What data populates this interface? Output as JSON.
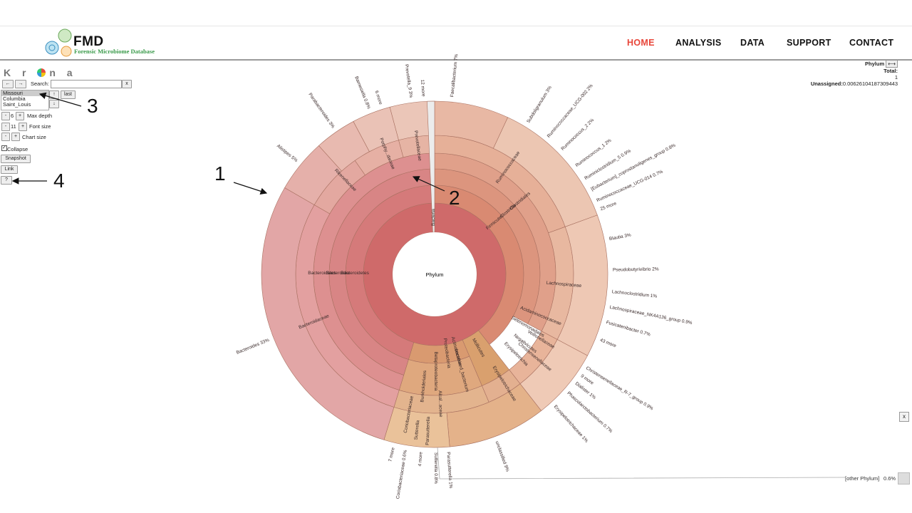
{
  "nav": {
    "logo_title": "FMD",
    "logo_subtitle": "Forensic Microbiome Database",
    "items": [
      "HOME",
      "ANALYSIS",
      "DATA",
      "SUPPORT",
      "CONTACT"
    ],
    "active": "HOME",
    "active_color": "#e8463a"
  },
  "krona": {
    "logo": "Kr na",
    "back": "←",
    "forward": "→",
    "search_label": "Search:",
    "search_clear": "x",
    "datasets": [
      "Missouri",
      "Columbia",
      "Saint_Louis"
    ],
    "selected_dataset": "Missouri",
    "up": "↑",
    "down": "↓",
    "last": "last",
    "max_depth": {
      "minus": "-",
      "value": "6",
      "plus": "+",
      "label": "Max depth"
    },
    "font_size": {
      "minus": "-",
      "value": "11",
      "plus": "+",
      "label": "Font size"
    },
    "chart_size": {
      "minus": "-",
      "plus": "+",
      "label": "Chart size"
    },
    "collapse_label": "Collapse",
    "collapse_checked": true,
    "snapshot": "Snapshot",
    "link": "Link",
    "help": "?"
  },
  "info": {
    "rank": "Phylum",
    "rank_button": "⟷",
    "total_label": "Total:",
    "total_value": "1",
    "unassigned_label": "Unassigned:",
    "unassigned_value": "0.00626104187309443",
    "other_label": "[other Phylum]",
    "other_pct": "0.6%",
    "close": "x"
  },
  "annotations": [
    "1",
    "2",
    "3",
    "4"
  ],
  "chart_data": {
    "type": "sunburst",
    "center_label": "Phylum",
    "ring_labels": [
      "Bacteria",
      "Bacteroidetes",
      "Bacteroidia",
      "Bacteroidales",
      "Firmicutes",
      "Clostridia",
      "Clostridiales",
      "Mollicutes",
      "Actinobacteria",
      "Proteobacteria",
      "Betaproteobacteria",
      "Burkholderiales",
      "Selenomonadales",
      "Negativicutes",
      "Erysipelotrichia",
      "Prevotellaceae",
      "Porphy...daceae",
      "Rikenellaceae",
      "Bacteroidaceae",
      "Ruminococcaceae",
      "Lachnospiraceae",
      "Christensenellaceae",
      "Acidaminococcaceae",
      "Veillonellaceae",
      "Erysipelotrichaceae",
      "uncultured_bacterium",
      "Coriobacteriaceae",
      "Alcal...aceae",
      "Sutterella",
      "Parasutterella"
    ],
    "leaves": [
      {
        "name": "Bacteroides",
        "pct": "33%"
      },
      {
        "name": "Alistipes",
        "pct": "5%"
      },
      {
        "name": "Parabacteroides",
        "pct": "3%"
      },
      {
        "name": "Barnesiella",
        "pct": "0.8%"
      },
      {
        "name": "6 more",
        "pct": ""
      },
      {
        "name": "Prevotella_9",
        "pct": "3%"
      },
      {
        "name": "12 more",
        "pct": ""
      },
      {
        "name": "Faecalibacterium",
        "pct": "7%"
      },
      {
        "name": "Subdoligranulum",
        "pct": "3%"
      },
      {
        "name": "Ruminococcaceae_UCG-002",
        "pct": "2%"
      },
      {
        "name": "Ruminococcus_2",
        "pct": "2%"
      },
      {
        "name": "Ruminococcus_1",
        "pct": "2%"
      },
      {
        "name": "Ruminiclostridium_5",
        "pct": "0.9%"
      },
      {
        "name": "[Eubacterium]_coprostanoligenes_group",
        "pct": "0.8%"
      },
      {
        "name": "Ruminococcaceae_UCG-014",
        "pct": "0.7%"
      },
      {
        "name": "25 more",
        "pct": ""
      },
      {
        "name": "Blautia",
        "pct": "3%"
      },
      {
        "name": "Pseudobutyrivibrio",
        "pct": "2%"
      },
      {
        "name": "Lachnoclostridium",
        "pct": "1%"
      },
      {
        "name": "Lachnospiraceae_NK4A136_group",
        "pct": "0.9%"
      },
      {
        "name": "Fusicatenibacter",
        "pct": "0.7%"
      },
      {
        "name": "43 more",
        "pct": ""
      },
      {
        "name": "Christensenellaceae_R-7_group",
        "pct": "0.9%"
      },
      {
        "name": "9 more",
        "pct": ""
      },
      {
        "name": "Dialister",
        "pct": "1%"
      },
      {
        "name": "Phascolarctobacterium",
        "pct": "0.7%"
      },
      {
        "name": "Erysipelotrichaceae",
        "pct": "1%"
      },
      {
        "name": "unclassified",
        "pct": "9%"
      },
      {
        "name": "Parasutterella",
        "pct": "1%"
      },
      {
        "name": "Sutterella",
        "pct": "0.8%"
      },
      {
        "name": "4 more",
        "pct": ""
      },
      {
        "name": "Coriobacteriaceae",
        "pct": "0.6%"
      },
      {
        "name": "7 more",
        "pct": ""
      }
    ]
  }
}
